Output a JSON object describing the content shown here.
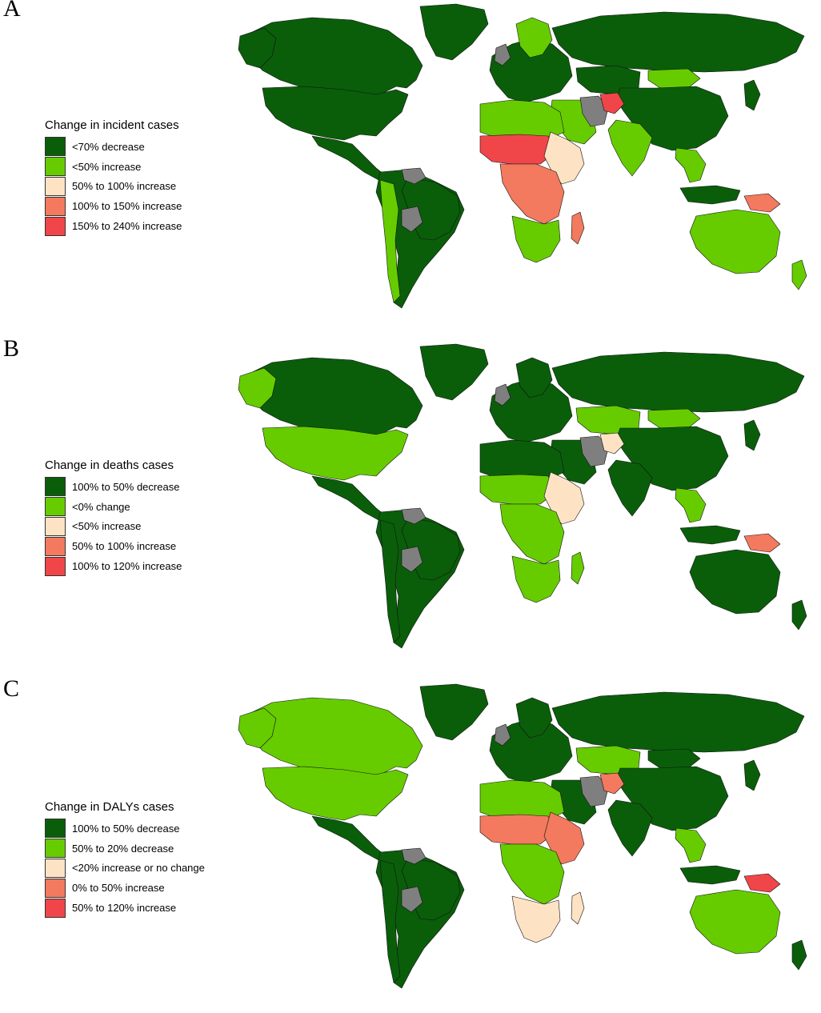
{
  "colors": {
    "dark_green": "#0a5e0a",
    "light_green": "#66cc00",
    "beige": "#fde3c4",
    "salmon": "#f37a5e",
    "red": "#f0464a",
    "gray": "#7f7f7f",
    "border": "#111111"
  },
  "panels": [
    {
      "letter": "A",
      "legend": {
        "title": "Change in incident cases",
        "items": [
          {
            "label": "<70% decrease",
            "color": "#0a5e0a"
          },
          {
            "label": "<50% increase",
            "color": "#66cc00"
          },
          {
            "label": "50% to 100% increase",
            "color": "#fde3c4"
          },
          {
            "label": "100% to 150% increase",
            "color": "#f37a5e"
          },
          {
            "label": "150% to 240% increase",
            "color": "#f0464a"
          }
        ]
      },
      "regions": {
        "north_america": "dark_green",
        "usa": "dark_green",
        "alaska": "dark_green",
        "greenland": "dark_green",
        "central_america": "dark_green",
        "south_america": "dark_green",
        "brazil": "dark_green",
        "andes": "light_green",
        "europe": "dark_green",
        "scandinavia": "light_green",
        "russia": "dark_green",
        "kazakhstan": "dark_green",
        "mongolia": "light_green",
        "china": "dark_green",
        "india": "light_green",
        "middle_east": "light_green",
        "iran": "gray",
        "afghanistan": "red",
        "north_africa": "light_green",
        "sahel": "red",
        "east_africa": "beige",
        "central_africa": "salmon",
        "southern_africa": "light_green",
        "madagascar": "salmon",
        "southeast_asia": "light_green",
        "indonesia": "dark_green",
        "new_guinea": "salmon",
        "australia": "light_green",
        "new_zealand": "light_green",
        "japan": "dark_green",
        "uk": "gray",
        "venezuela": "gray",
        "bolivia": "gray"
      }
    },
    {
      "letter": "B",
      "legend": {
        "title": "Change in deaths cases",
        "items": [
          {
            "label": "100% to 50% decrease",
            "color": "#0a5e0a"
          },
          {
            "label": "<0% change",
            "color": "#66cc00"
          },
          {
            "label": "<50% increase",
            "color": "#fde3c4"
          },
          {
            "label": "50% to 100% increase",
            "color": "#f37a5e"
          },
          {
            "label": "100% to 120% increase",
            "color": "#f0464a"
          }
        ]
      },
      "regions": {
        "north_america": "dark_green",
        "usa": "light_green",
        "alaska": "light_green",
        "greenland": "dark_green",
        "central_america": "dark_green",
        "south_america": "dark_green",
        "brazil": "dark_green",
        "andes": "dark_green",
        "europe": "dark_green",
        "scandinavia": "dark_green",
        "russia": "dark_green",
        "kazakhstan": "light_green",
        "mongolia": "light_green",
        "china": "dark_green",
        "india": "dark_green",
        "middle_east": "dark_green",
        "iran": "gray",
        "afghanistan": "beige",
        "north_africa": "dark_green",
        "sahel": "light_green",
        "east_africa": "beige",
        "central_africa": "light_green",
        "southern_africa": "light_green",
        "madagascar": "light_green",
        "southeast_asia": "light_green",
        "indonesia": "dark_green",
        "new_guinea": "salmon",
        "australia": "dark_green",
        "new_zealand": "dark_green",
        "japan": "dark_green",
        "uk": "gray",
        "venezuela": "gray",
        "bolivia": "gray"
      }
    },
    {
      "letter": "C",
      "legend": {
        "title": "Change in DALYs cases",
        "items": [
          {
            "label": "100% to 50% decrease",
            "color": "#0a5e0a"
          },
          {
            "label": "50% to 20% decrease",
            "color": "#66cc00"
          },
          {
            "label": "<20% increase or no change",
            "color": "#fde3c4"
          },
          {
            "label": "0% to 50% increase",
            "color": "#f37a5e"
          },
          {
            "label": "50% to 120% increase",
            "color": "#f0464a"
          }
        ]
      },
      "regions": {
        "north_america": "light_green",
        "usa": "light_green",
        "alaska": "light_green",
        "greenland": "dark_green",
        "central_america": "dark_green",
        "south_america": "dark_green",
        "brazil": "dark_green",
        "andes": "dark_green",
        "europe": "dark_green",
        "scandinavia": "dark_green",
        "russia": "dark_green",
        "kazakhstan": "light_green",
        "mongolia": "dark_green",
        "china": "dark_green",
        "india": "dark_green",
        "middle_east": "dark_green",
        "iran": "gray",
        "afghanistan": "salmon",
        "north_africa": "light_green",
        "sahel": "salmon",
        "east_africa": "salmon",
        "central_africa": "light_green",
        "southern_africa": "beige",
        "madagascar": "beige",
        "southeast_asia": "light_green",
        "indonesia": "dark_green",
        "new_guinea": "red",
        "australia": "light_green",
        "new_zealand": "dark_green",
        "japan": "dark_green",
        "uk": "gray",
        "venezuela": "gray",
        "bolivia": "gray"
      }
    }
  ]
}
